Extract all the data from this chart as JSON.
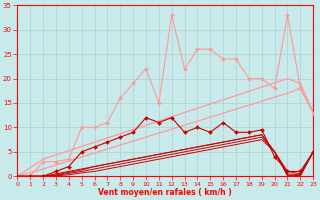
{
  "background_color": "#c8eaea",
  "grid_color": "#b0d0d0",
  "x_label": "Vent moyen/en rafales ( km/h )",
  "xlim": [
    0,
    23
  ],
  "ylim": [
    0,
    35
  ],
  "yticks": [
    0,
    5,
    10,
    15,
    20,
    25,
    30,
    35
  ],
  "xticks": [
    0,
    1,
    2,
    3,
    4,
    5,
    6,
    7,
    8,
    9,
    10,
    11,
    12,
    13,
    14,
    15,
    16,
    17,
    18,
    19,
    20,
    21,
    22,
    23
  ],
  "series": [
    {
      "x": [
        0,
        1,
        2,
        3,
        4,
        5,
        6,
        7,
        8,
        9,
        10,
        11,
        12,
        13,
        14,
        15,
        16,
        17,
        18,
        19,
        20,
        21,
        22,
        23
      ],
      "y": [
        0,
        0,
        3,
        3,
        3.5,
        10,
        10,
        11,
        16,
        19,
        22,
        15,
        33,
        22,
        26,
        26,
        24,
        24,
        20,
        20,
        18,
        33,
        18,
        13
      ],
      "color": "#ff9999",
      "marker": "D",
      "markersize": 2.0,
      "linewidth": 0.8
    },
    {
      "x": [
        0,
        1,
        2,
        3,
        4,
        5,
        6,
        7,
        8,
        9,
        10,
        11,
        12,
        13,
        14,
        15,
        16,
        17,
        18,
        19,
        20,
        21,
        22,
        23
      ],
      "y": [
        0,
        0,
        0,
        1,
        2,
        5,
        6,
        7,
        8,
        9,
        12,
        11,
        12,
        9,
        10,
        9,
        11,
        9,
        9,
        9.5,
        4,
        1,
        1,
        5
      ],
      "color": "#cc0000",
      "marker": "D",
      "markersize": 2.0,
      "linewidth": 0.8
    },
    {
      "x": [
        0,
        2,
        21,
        22,
        23
      ],
      "y": [
        0,
        3.5,
        20,
        19,
        13
      ],
      "color": "#ff9999",
      "marker": null,
      "linewidth": 0.9
    },
    {
      "x": [
        0,
        2,
        21,
        22,
        23
      ],
      "y": [
        0,
        1.5,
        17,
        18,
        13
      ],
      "color": "#ff9999",
      "marker": null,
      "linewidth": 0.9
    },
    {
      "x": [
        0,
        2,
        3,
        4,
        5,
        6,
        7,
        8,
        9,
        10,
        11,
        12,
        13,
        14,
        15,
        16,
        17,
        18,
        19,
        20,
        21,
        22,
        23
      ],
      "y": [
        0,
        0,
        0.5,
        1,
        1.5,
        2,
        2.5,
        3,
        3.5,
        4,
        4.5,
        5,
        5.5,
        6,
        6.5,
        7,
        7.5,
        8,
        8.5,
        5,
        1,
        0.5,
        5
      ],
      "color": "#cc0000",
      "marker": null,
      "linewidth": 0.7
    },
    {
      "x": [
        0,
        2,
        3,
        4,
        5,
        6,
        7,
        8,
        9,
        10,
        11,
        12,
        13,
        14,
        15,
        16,
        17,
        18,
        19,
        20,
        21,
        22,
        23
      ],
      "y": [
        0,
        0,
        0.3,
        0.8,
        1.3,
        2,
        2.5,
        3,
        3.5,
        4,
        4.5,
        5,
        5.5,
        6,
        6.5,
        7,
        7.5,
        8,
        8.5,
        5,
        0.5,
        0.3,
        5
      ],
      "color": "#cc0000",
      "marker": null,
      "linewidth": 0.7
    },
    {
      "x": [
        0,
        2,
        3,
        4,
        5,
        6,
        7,
        8,
        9,
        10,
        11,
        12,
        13,
        14,
        15,
        16,
        17,
        18,
        19,
        20,
        21,
        22,
        23
      ],
      "y": [
        0,
        0,
        0.2,
        0.6,
        1,
        1.5,
        2,
        2.5,
        3,
        3.5,
        4,
        4.5,
        5,
        5.5,
        6,
        6.5,
        7,
        7.5,
        8,
        5,
        0.2,
        0.2,
        5
      ],
      "color": "#cc0000",
      "marker": null,
      "linewidth": 0.7
    },
    {
      "x": [
        0,
        2,
        3,
        4,
        5,
        6,
        7,
        8,
        9,
        10,
        11,
        12,
        13,
        14,
        15,
        16,
        17,
        18,
        19,
        20,
        21,
        22,
        23
      ],
      "y": [
        0,
        0,
        0.1,
        0.3,
        0.7,
        1,
        1.5,
        2,
        2.5,
        3,
        3.5,
        4,
        4.5,
        5,
        5.5,
        6,
        6.5,
        7,
        7.5,
        5,
        0.1,
        0.1,
        5
      ],
      "color": "#cc0000",
      "marker": null,
      "linewidth": 0.7
    }
  ]
}
